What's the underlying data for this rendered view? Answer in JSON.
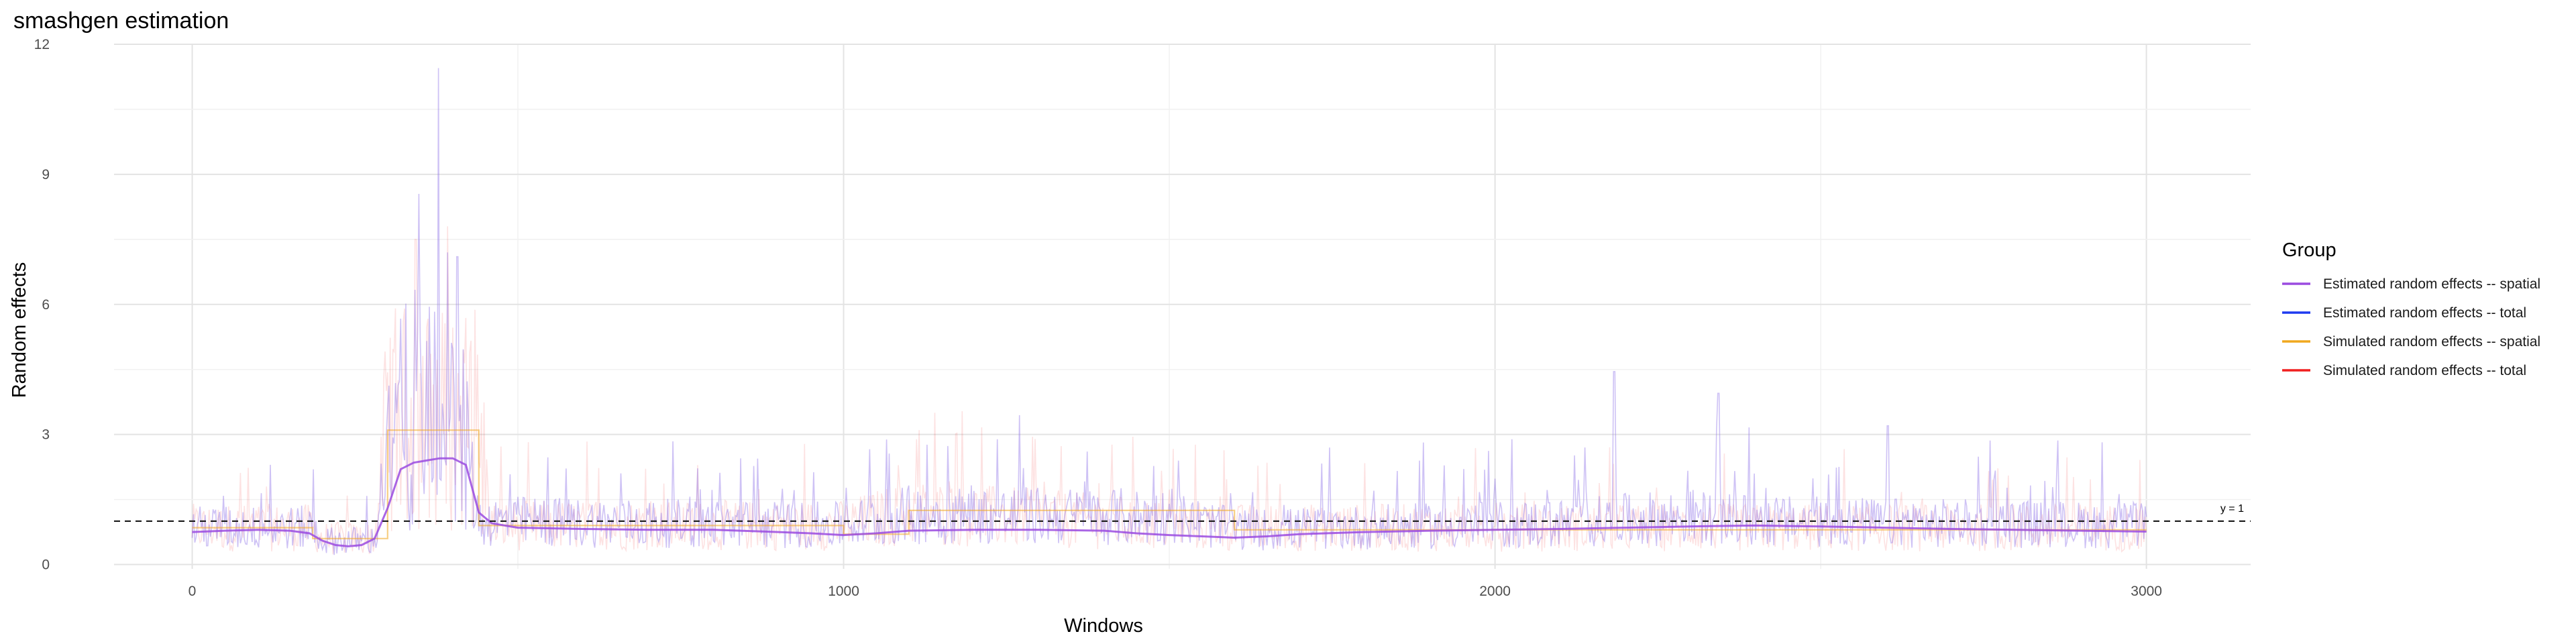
{
  "chart_data": {
    "type": "line",
    "title": "smashgen estimation",
    "xlabel": "Windows",
    "ylabel": "Random effects",
    "xlim": [
      -120,
      3160
    ],
    "ylim": [
      -0.1,
      12
    ],
    "x_ticks": [
      0,
      1000,
      2000,
      3000
    ],
    "x_tick_labels": [
      "0",
      "1000",
      "2000",
      "3000"
    ],
    "y_ticks": [
      0,
      3,
      6,
      9,
      12
    ],
    "y_tick_labels": [
      "0",
      "3",
      "6",
      "9",
      "12"
    ],
    "grid": true,
    "legend": {
      "title": "Group",
      "placement": "right",
      "items": [
        {
          "label": "Estimated random effects -- spatial",
          "color": "#9B4BE0"
        },
        {
          "label": "Estimated random effects -- total",
          "color": "#1F3BF0"
        },
        {
          "label": "Simulated random effects -- spatial",
          "color": "#F0A81F"
        },
        {
          "label": "Simulated random effects -- total",
          "color": "#F01F1F"
        }
      ]
    },
    "reference_line": {
      "y": 1,
      "label": "y = 1",
      "style": "dashed"
    },
    "series": [
      {
        "name": "Estimated random effects -- spatial",
        "color": "#9B4BE0",
        "x": [
          0,
          50,
          100,
          150,
          180,
          200,
          220,
          240,
          260,
          280,
          300,
          320,
          340,
          360,
          380,
          400,
          420,
          440,
          460,
          500,
          600,
          700,
          800,
          900,
          950,
          1000,
          1050,
          1100,
          1200,
          1300,
          1400,
          1450,
          1500,
          1550,
          1600,
          1650,
          1700,
          1800,
          1900,
          2000,
          2100,
          2200,
          2300,
          2400,
          2500,
          2600,
          2700,
          2800,
          2900,
          3000
        ],
        "y": [
          0.75,
          0.78,
          0.8,
          0.78,
          0.72,
          0.55,
          0.45,
          0.42,
          0.45,
          0.6,
          1.3,
          2.2,
          2.35,
          2.4,
          2.45,
          2.45,
          2.3,
          1.2,
          0.95,
          0.85,
          0.82,
          0.8,
          0.8,
          0.75,
          0.72,
          0.68,
          0.72,
          0.78,
          0.8,
          0.8,
          0.78,
          0.72,
          0.68,
          0.65,
          0.62,
          0.65,
          0.7,
          0.75,
          0.78,
          0.8,
          0.82,
          0.85,
          0.88,
          0.9,
          0.88,
          0.85,
          0.82,
          0.8,
          0.78,
          0.76
        ]
      },
      {
        "name": "Simulated random effects -- spatial",
        "color": "#F0A81F",
        "x": [
          0,
          185,
          185,
          300,
          300,
          440,
          440,
          1000,
          1000,
          1100,
          1100,
          1600,
          1600,
          3000
        ],
        "y": [
          0.85,
          0.85,
          0.6,
          0.6,
          3.1,
          3.1,
          0.9,
          0.9,
          0.7,
          0.7,
          1.25,
          1.25,
          0.8,
          0.8
        ]
      },
      {
        "name": "Estimated random effects -- total",
        "color": "#1F3BF0",
        "note": "dense noisy per-window estimates",
        "x_range": [
          0,
          3000
        ],
        "profile": {
          "x": [
            0,
            185,
            200,
            280,
            300,
            340,
            360,
            380,
            420,
            440,
            1000,
            1100,
            1500,
            1600,
            2100,
            2300,
            2400,
            3000
          ],
          "y": [
            0.85,
            0.85,
            0.55,
            0.55,
            2.6,
            3.2,
            3.0,
            2.9,
            2.7,
            1.0,
            0.9,
            1.15,
            1.1,
            0.8,
            0.95,
            1.1,
            1.0,
            0.9
          ]
        },
        "peaks": [
          {
            "x": 348,
            "y": 8.55
          },
          {
            "x": 378,
            "y": 11.45
          },
          {
            "x": 392,
            "y": 7.2
          },
          {
            "x": 407,
            "y": 7.1
          },
          {
            "x": 2343,
            "y": 3.95
          },
          {
            "x": 2183,
            "y": 4.45
          },
          {
            "x": 2603,
            "y": 3.2
          }
        ]
      },
      {
        "name": "Simulated random effects -- total",
        "color": "#F01F1F",
        "note": "dense noisy simulated values",
        "x_range": [
          0,
          3000
        ],
        "profile": {
          "x": [
            0,
            185,
            200,
            280,
            300,
            440,
            460,
            1000,
            1100,
            1600,
            3000
          ],
          "y": [
            0.85,
            0.85,
            0.6,
            0.6,
            3.0,
            3.0,
            0.9,
            0.9,
            1.2,
            0.85,
            0.85
          ]
        },
        "peaks": [
          {
            "x": 343,
            "y": 7.5
          },
          {
            "x": 392,
            "y": 7.8
          }
        ]
      }
    ]
  }
}
